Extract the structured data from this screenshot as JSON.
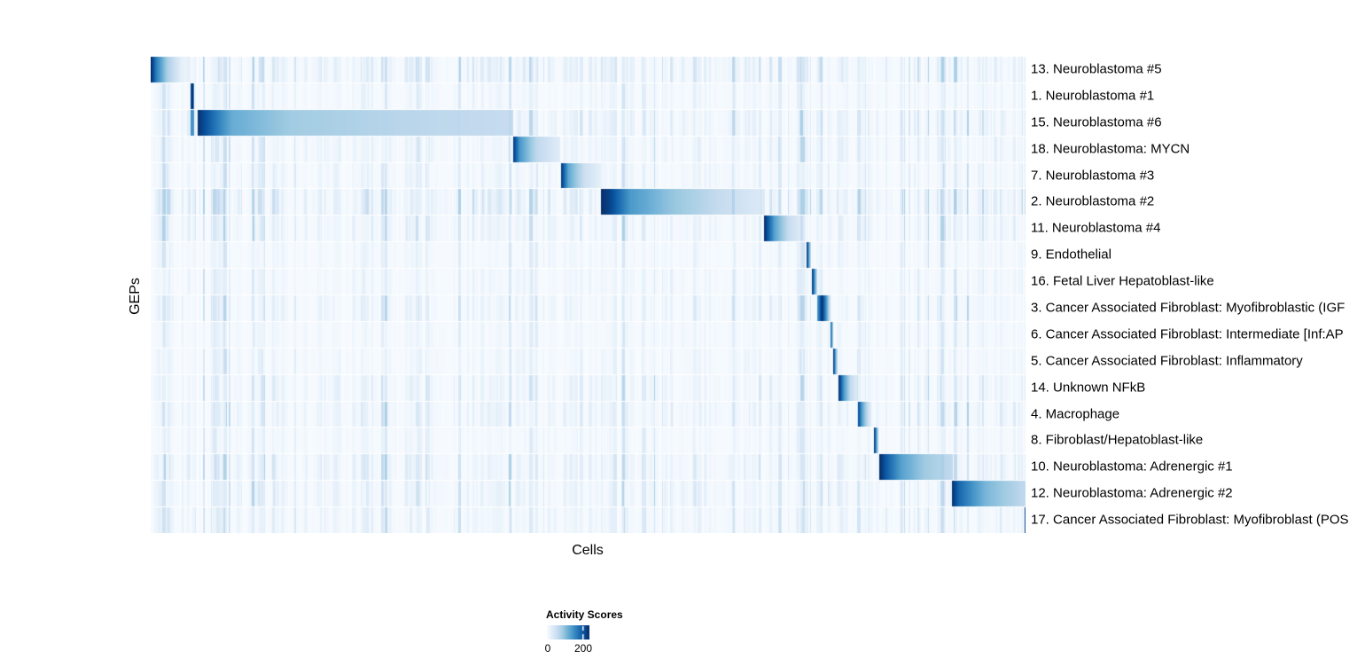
{
  "chart_data": {
    "type": "heatmap",
    "xlabel": "Cells",
    "ylabel": "GEPs",
    "grid": false,
    "legend_position": "bottom-left",
    "colorbar": {
      "title": "Activity Scores",
      "tick_labels": [
        "0",
        "200"
      ],
      "tick_values": [
        0,
        200
      ],
      "domain": [
        0,
        235
      ],
      "palette": "Blues",
      "colors": [
        "#f7fbff",
        "#deebf7",
        "#c6dbef",
        "#9ecae1",
        "#6baed6",
        "#4292c6",
        "#2171b5",
        "#08519c",
        "#08306b"
      ]
    },
    "noise_seed": 12345,
    "rows": [
      {
        "label": "13. Neuroblastoma #5",
        "noise_gain": 1.25,
        "blocks": [
          {
            "start": 0.0,
            "end": 0.046,
            "stops": [
              [
                0,
                235
              ],
              [
                0.12,
                170
              ],
              [
                0.4,
                80
              ],
              [
                0.75,
                22
              ],
              [
                1,
                4
              ]
            ]
          }
        ]
      },
      {
        "label": "1. Neuroblastoma #1",
        "noise_gain": 0.6,
        "blocks": [
          {
            "start": 0.0446,
            "end": 0.0496,
            "stops": [
              [
                0,
                120
              ],
              [
                0.3,
                235
              ],
              [
                0.7,
                235
              ],
              [
                1,
                30
              ]
            ]
          }
        ]
      },
      {
        "label": "15. Neuroblastoma #6",
        "noise_gain": 1.15,
        "blocks": [
          {
            "start": 0.0446,
            "end": 0.0496,
            "stops": [
              [
                0,
                150
              ],
              [
                1,
                140
              ]
            ]
          },
          {
            "start": 0.0527,
            "end": 0.4134,
            "stops": [
              [
                0,
                235
              ],
              [
                0.035,
                195
              ],
              [
                0.11,
                120
              ],
              [
                0.3,
                85
              ],
              [
                0.65,
                68
              ],
              [
                1,
                58
              ]
            ]
          }
        ]
      },
      {
        "label": "18. Neuroblastoma: MYCN",
        "noise_gain": 0.9,
        "blocks": [
          {
            "start": 0.4134,
            "end": 0.4671,
            "stops": [
              [
                0,
                235
              ],
              [
                0.15,
                140
              ],
              [
                0.5,
                65
              ],
              [
                1,
                26
              ]
            ]
          }
        ]
      },
      {
        "label": "7. Neuroblastoma #3",
        "noise_gain": 0.75,
        "blocks": [
          {
            "start": 0.4681,
            "end": 0.5137,
            "stops": [
              [
                0,
                235
              ],
              [
                0.2,
                125
              ],
              [
                0.6,
                50
              ],
              [
                1,
                20
              ]
            ]
          }
        ]
      },
      {
        "label": "2. Neuroblastoma #2",
        "noise_gain": 1.6,
        "blocks": [
          {
            "start": 0.5137,
            "end": 0.7021,
            "stops": [
              [
                0,
                238
              ],
              [
                0.06,
                215
              ],
              [
                0.18,
                140
              ],
              [
                0.42,
                95
              ],
              [
                0.72,
                58
              ],
              [
                1,
                30
              ]
            ]
          }
        ]
      },
      {
        "label": "11. Neuroblastoma #4",
        "noise_gain": 1.0,
        "blocks": [
          {
            "start": 0.7011,
            "end": 0.7477,
            "stops": [
              [
                0,
                235
              ],
              [
                0.25,
                130
              ],
              [
                0.6,
                55
              ],
              [
                1,
                18
              ]
            ]
          }
        ]
      },
      {
        "label": "9. Endothelial",
        "noise_gain": 0.55,
        "blocks": [
          {
            "start": 0.7497,
            "end": 0.7548,
            "stops": [
              [
                0,
                225
              ],
              [
                0.5,
                120
              ],
              [
                1,
                28
              ]
            ]
          }
        ]
      },
      {
        "label": "16. Fetal Liver Hepatoblast-like",
        "noise_gain": 0.6,
        "blocks": [
          {
            "start": 0.7558,
            "end": 0.7619,
            "stops": [
              [
                0,
                225
              ],
              [
                0.5,
                130
              ],
              [
                1,
                32
              ]
            ]
          }
        ]
      },
      {
        "label": "3. Cancer Associated Fibroblast: Myofibroblastic (IGF",
        "noise_gain": 0.9,
        "blocks": [
          {
            "start": 0.7619,
            "end": 0.7761,
            "stops": [
              [
                0,
                140
              ],
              [
                0.35,
                235
              ],
              [
                0.7,
                140
              ],
              [
                1,
                42
              ]
            ]
          }
        ]
      },
      {
        "label": "6. Cancer Associated Fibroblast: Intermediate [Inf:AP",
        "noise_gain": 0.55,
        "blocks": [
          {
            "start": 0.7761,
            "end": 0.7801,
            "stops": [
              [
                0,
                230
              ],
              [
                0.6,
                120
              ],
              [
                1,
                45
              ]
            ]
          }
        ]
      },
      {
        "label": "5. Cancer Associated Fibroblast: Inflammatory",
        "noise_gain": 0.6,
        "blocks": [
          {
            "start": 0.7801,
            "end": 0.7852,
            "stops": [
              [
                0,
                225
              ],
              [
                0.5,
                110
              ],
              [
                1,
                36
              ]
            ]
          }
        ]
      },
      {
        "label": "14. Unknown NFkB",
        "noise_gain": 0.95,
        "blocks": [
          {
            "start": 0.7862,
            "end": 0.8085,
            "stops": [
              [
                0,
                235
              ],
              [
                0.25,
                140
              ],
              [
                0.6,
                60
              ],
              [
                1,
                22
              ]
            ]
          }
        ]
      },
      {
        "label": "4. Macrophage",
        "noise_gain": 1.0,
        "blocks": [
          {
            "start": 0.8075,
            "end": 0.8227,
            "stops": [
              [
                0,
                230
              ],
              [
                0.35,
                130
              ],
              [
                0.75,
                60
              ],
              [
                1,
                26
              ]
            ]
          }
        ]
      },
      {
        "label": "8. Fibroblast/Hepatoblast-like",
        "noise_gain": 0.6,
        "blocks": [
          {
            "start": 0.8267,
            "end": 0.8318,
            "stops": [
              [
                0,
                225
              ],
              [
                0.6,
                110
              ],
              [
                1,
                40
              ]
            ]
          }
        ]
      },
      {
        "label": "10. Neuroblastoma: Adrenergic #1",
        "noise_gain": 1.15,
        "blocks": [
          {
            "start": 0.8328,
            "end": 0.9169,
            "stops": [
              [
                0,
                238
              ],
              [
                0.08,
                200
              ],
              [
                0.3,
                130
              ],
              [
                0.6,
                88
              ],
              [
                1,
                60
              ]
            ]
          }
        ]
      },
      {
        "label": "12. Neuroblastoma: Adrenergic #2",
        "noise_gain": 1.0,
        "blocks": [
          {
            "start": 0.9149,
            "end": 1.0,
            "stops": [
              [
                0,
                238
              ],
              [
                0.1,
                185
              ],
              [
                0.45,
                110
              ],
              [
                0.8,
                78
              ],
              [
                1,
                60
              ]
            ]
          }
        ]
      },
      {
        "label": "17. Cancer Associated Fibroblast: Myofibroblast (POS",
        "noise_gain": 0.9,
        "blocks": [
          {
            "start": 0.998,
            "end": 1.0,
            "stops": [
              [
                0,
                235
              ],
              [
                1,
                190
              ]
            ]
          }
        ]
      }
    ]
  }
}
